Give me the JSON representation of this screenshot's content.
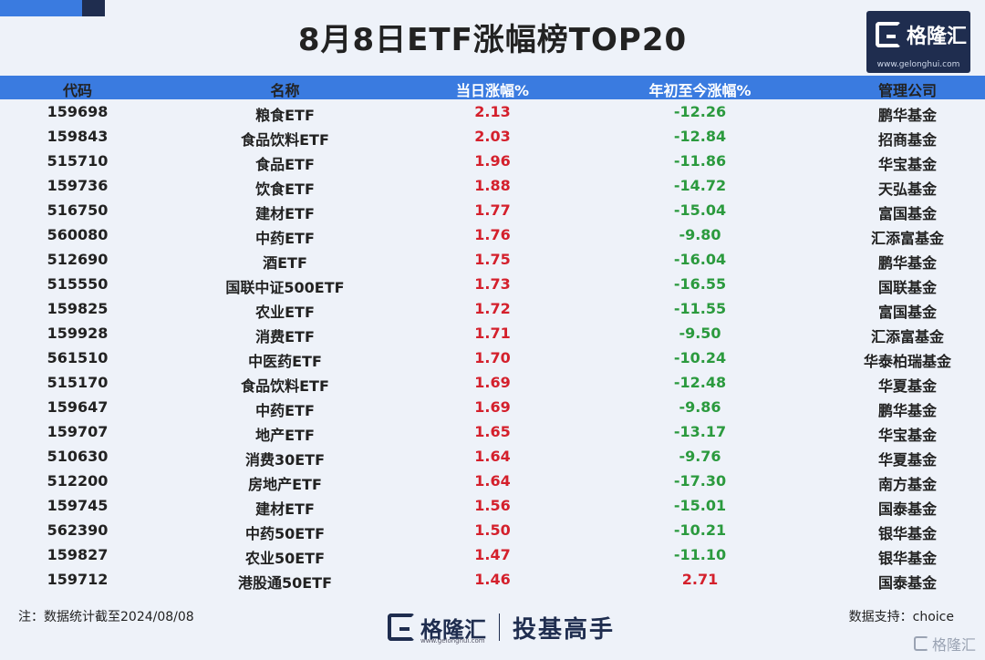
{
  "title": "8月8日ETF涨幅榜TOP20",
  "logo": {
    "brand": "格隆汇",
    "url": "www.gelonghui.com"
  },
  "columns": {
    "code": "代码",
    "name": "名称",
    "day_change": "当日涨幅%",
    "ytd_change": "年初至今涨幅%",
    "manager": "管理公司"
  },
  "rows": [
    {
      "code": "159698",
      "name": "粮食ETF",
      "day": "2.13",
      "ytd": "-12.26",
      "mgr": "鹏华基金"
    },
    {
      "code": "159843",
      "name": "食品饮料ETF",
      "day": "2.03",
      "ytd": "-12.84",
      "mgr": "招商基金"
    },
    {
      "code": "515710",
      "name": "食品ETF",
      "day": "1.96",
      "ytd": "-11.86",
      "mgr": "华宝基金"
    },
    {
      "code": "159736",
      "name": "饮食ETF",
      "day": "1.88",
      "ytd": "-14.72",
      "mgr": "天弘基金"
    },
    {
      "code": "516750",
      "name": "建材ETF",
      "day": "1.77",
      "ytd": "-15.04",
      "mgr": "富国基金"
    },
    {
      "code": "560080",
      "name": "中药ETF",
      "day": "1.76",
      "ytd": "-9.80",
      "mgr": "汇添富基金"
    },
    {
      "code": "512690",
      "name": "酒ETF",
      "day": "1.75",
      "ytd": "-16.04",
      "mgr": "鹏华基金"
    },
    {
      "code": "515550",
      "name": "国联中证500ETF",
      "day": "1.73",
      "ytd": "-16.55",
      "mgr": "国联基金"
    },
    {
      "code": "159825",
      "name": "农业ETF",
      "day": "1.72",
      "ytd": "-11.55",
      "mgr": "富国基金"
    },
    {
      "code": "159928",
      "name": "消费ETF",
      "day": "1.71",
      "ytd": "-9.50",
      "mgr": "汇添富基金"
    },
    {
      "code": "561510",
      "name": "中医药ETF",
      "day": "1.70",
      "ytd": "-10.24",
      "mgr": "华泰柏瑞基金"
    },
    {
      "code": "515170",
      "name": "食品饮料ETF",
      "day": "1.69",
      "ytd": "-12.48",
      "mgr": "华夏基金"
    },
    {
      "code": "159647",
      "name": "中药ETF",
      "day": "1.69",
      "ytd": "-9.86",
      "mgr": "鹏华基金"
    },
    {
      "code": "159707",
      "name": "地产ETF",
      "day": "1.65",
      "ytd": "-13.17",
      "mgr": "华宝基金"
    },
    {
      "code": "510630",
      "name": "消费30ETF",
      "day": "1.64",
      "ytd": "-9.76",
      "mgr": "华夏基金"
    },
    {
      "code": "512200",
      "name": "房地产ETF",
      "day": "1.64",
      "ytd": "-17.30",
      "mgr": "南方基金"
    },
    {
      "code": "159745",
      "name": "建材ETF",
      "day": "1.56",
      "ytd": "-15.01",
      "mgr": "国泰基金"
    },
    {
      "code": "562390",
      "name": "中药50ETF",
      "day": "1.50",
      "ytd": "-10.21",
      "mgr": "银华基金"
    },
    {
      "code": "159827",
      "name": "农业50ETF",
      "day": "1.47",
      "ytd": "-11.10",
      "mgr": "银华基金"
    },
    {
      "code": "159712",
      "name": "港股通50ETF",
      "day": "1.46",
      "ytd": "2.71",
      "mgr": "国泰基金"
    }
  ],
  "footer": {
    "note": "注：数据统计截至2024/08/08",
    "support": "数据支持：choice",
    "bottom_brand": "格隆汇",
    "bottom_url": "www.gelonghui.com",
    "slogan": "投基高手",
    "watermark": "格隆汇"
  },
  "colors": {
    "header_bg": "#3a7be0",
    "up": "#d4202c",
    "down": "#2b9a3e",
    "navy": "#1f2d4f"
  }
}
